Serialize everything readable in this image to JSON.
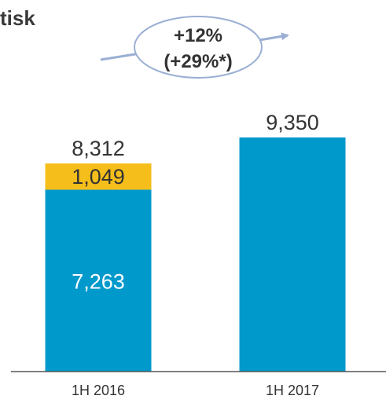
{
  "title_fragment": "tisk",
  "annotation": {
    "line1": "+12%",
    "line2": "(+29%*)"
  },
  "chart_data": {
    "type": "bar",
    "stacked": true,
    "categories": [
      "1H 2016",
      "1H 2017"
    ],
    "series": [
      {
        "values": [
          7263,
          9350
        ],
        "color": "#0099CC",
        "label_color": "#ffffff"
      },
      {
        "values": [
          1049,
          null
        ],
        "color": "#F5BE1A",
        "label_color": "#333333"
      }
    ],
    "segment_labels": [
      [
        "7,263",
        "1,049"
      ],
      [
        "",
        ""
      ]
    ],
    "totals": [
      8312,
      9350
    ],
    "total_labels": [
      "8,312",
      "9,350"
    ],
    "ylim": [
      0,
      9350
    ],
    "legend": "none",
    "grid": false
  }
}
